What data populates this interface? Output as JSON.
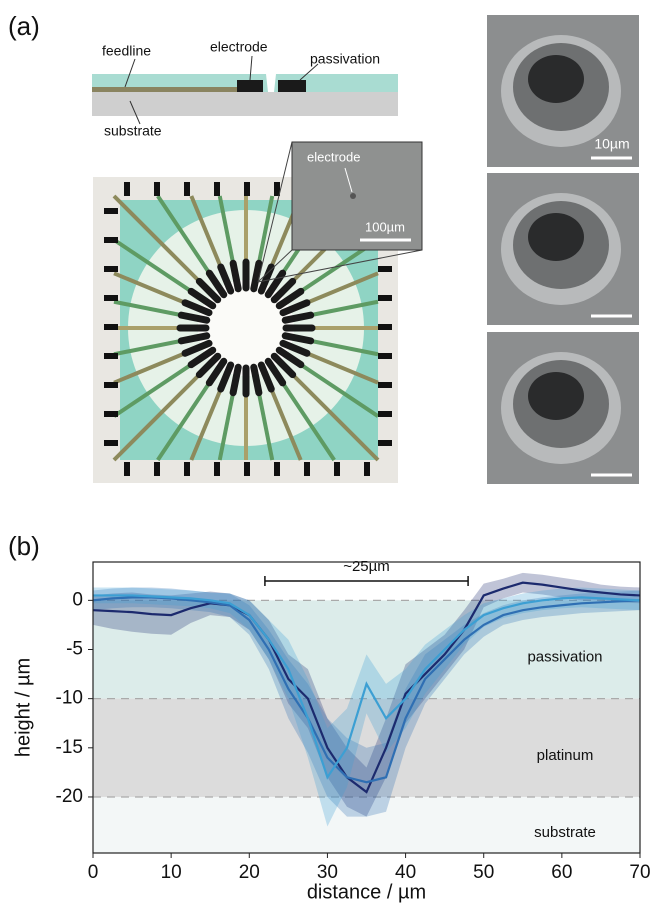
{
  "panel_a": {
    "label": "(a)",
    "schematic": {
      "feedline": "feedline",
      "electrode": "electrode",
      "passivation": "passivation",
      "substrate": "substrate"
    },
    "inset": {
      "label": "electrode",
      "scale_bar": "100µm"
    },
    "sem": {
      "scale_bar": "10µm"
    }
  },
  "chart_data": {
    "type": "line",
    "label": "(b)",
    "xlabel": "distance / µm",
    "ylabel": "height / µm",
    "xlim": [
      0,
      70
    ],
    "ylim": [
      -25.7,
      3.9
    ],
    "xticks": [
      0,
      10,
      20,
      30,
      40,
      50,
      60,
      70
    ],
    "yticks": [
      -20,
      -15,
      -10,
      -5,
      0
    ],
    "annotation": "~25µm",
    "annotation_range": [
      22,
      48
    ],
    "regions": [
      {
        "name": "passivation",
        "range": [
          -10,
          0
        ],
        "color": "#dcecea"
      },
      {
        "name": "platinum",
        "range": [
          -20,
          -10
        ],
        "color": "#dcdcdc"
      },
      {
        "name": "substrate",
        "range": [
          -25.7,
          -20
        ],
        "color": "#f3f7f7"
      }
    ],
    "x": [
      0,
      2.5,
      5,
      7.5,
      10,
      12.5,
      15,
      17.5,
      20,
      22.5,
      25,
      27.5,
      30,
      32.5,
      35,
      37.5,
      40,
      42.5,
      45,
      47.5,
      50,
      52.5,
      55,
      57.5,
      60,
      62.5,
      65,
      67.5,
      70
    ],
    "series": [
      {
        "color": "#1c2a6e",
        "values": [
          -1,
          -1.1,
          -1.2,
          -1.4,
          -1.5,
          -0.8,
          -0.3,
          -0.5,
          -1.5,
          -4,
          -8,
          -10,
          -15,
          -18,
          -19.5,
          -15,
          -9.5,
          -7.5,
          -5.5,
          -3,
          0.5,
          1.2,
          1.8,
          1.6,
          1.3,
          1,
          0.8,
          0.6,
          0.5
        ],
        "errors": [
          1.5,
          1.8,
          2,
          2,
          2,
          1.5,
          1.2,
          1.2,
          1.5,
          2,
          2.5,
          3,
          3,
          3,
          2.5,
          3,
          3,
          2.5,
          2,
          2,
          1.2,
          1,
          1,
          1,
          1,
          1,
          0.8,
          0.8,
          0.8
        ]
      },
      {
        "color": "#2f6fb3",
        "values": [
          0,
          0.2,
          0.3,
          0.3,
          0.2,
          0,
          -0.2,
          -0.5,
          -2,
          -5,
          -9,
          -12,
          -16,
          -18,
          -18.5,
          -18,
          -12,
          -8,
          -6,
          -4,
          -2.5,
          -1.5,
          -1,
          -0.7,
          -0.5,
          -0.3,
          -0.2,
          -0.1,
          0
        ],
        "errors": [
          1,
          1,
          1,
          1,
          1,
          1,
          1,
          1.2,
          1.5,
          2,
          3,
          3.5,
          4,
          4,
          3.5,
          3.5,
          3,
          2.5,
          2,
          1.5,
          1.2,
          1,
          1,
          1,
          1,
          1,
          1,
          1,
          1
        ]
      },
      {
        "color": "#3c9fd3",
        "values": [
          0.5,
          0.5,
          0.5,
          0.4,
          0.3,
          0.2,
          0,
          -0.3,
          -1.5,
          -4,
          -7,
          -12,
          -18,
          -15,
          -8.5,
          -12,
          -10,
          -7,
          -5,
          -3,
          -1.5,
          -0.8,
          -0.3,
          0,
          0.2,
          0.3,
          0.2,
          0.1,
          0
        ],
        "errors": [
          0.8,
          0.8,
          0.8,
          0.8,
          0.8,
          0.8,
          0.8,
          1,
          1.5,
          2,
          3,
          4,
          5,
          4,
          3,
          3.5,
          3,
          2.5,
          2,
          1.5,
          1.2,
          1,
          1,
          1,
          1,
          1,
          1,
          1,
          1
        ]
      }
    ]
  }
}
